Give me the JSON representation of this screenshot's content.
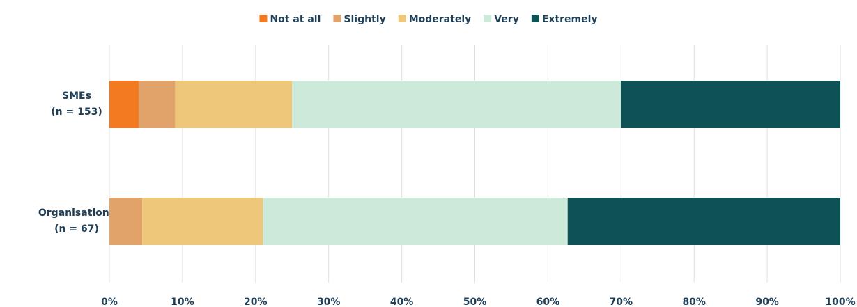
{
  "chart_data": {
    "type": "bar",
    "orientation": "horizontal",
    "stacked": "100%",
    "title": "",
    "xlabel": "",
    "ylabel": "",
    "xlim": [
      0,
      100
    ],
    "grid": true,
    "legend_position": "top",
    "categories": [
      {
        "label": "SMEs",
        "sublabel": "(n = 153)"
      },
      {
        "label": "Organisations",
        "sublabel": "(n = 67)"
      }
    ],
    "series": [
      {
        "name": "Not at all",
        "color": "#f37a21",
        "values": [
          4,
          0
        ]
      },
      {
        "name": "Slightly",
        "color": "#e2a36b",
        "values": [
          5,
          4.5
        ]
      },
      {
        "name": "Moderately",
        "color": "#eec77a",
        "values": [
          16,
          16.5
        ]
      },
      {
        "name": "Very",
        "color": "#cde9d9",
        "values": [
          45,
          41.7
        ]
      },
      {
        "name": "Extremely",
        "color": "#0e5255",
        "values": [
          30,
          37.3
        ]
      }
    ],
    "x_ticks": [
      "0%",
      "10%",
      "20%",
      "30%",
      "40%",
      "50%",
      "60%",
      "70%",
      "80%",
      "90%",
      "100%"
    ]
  }
}
